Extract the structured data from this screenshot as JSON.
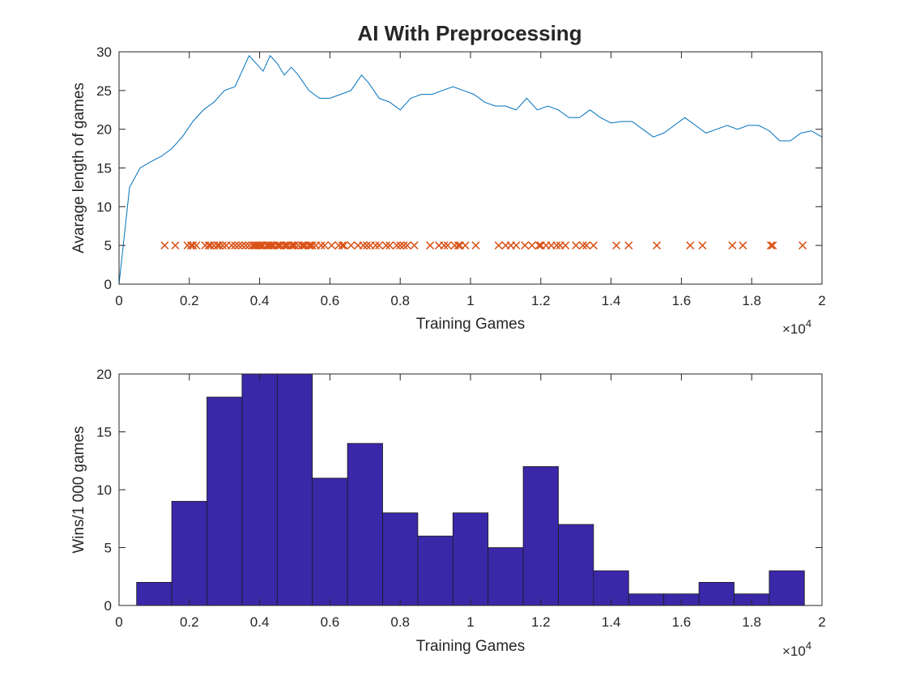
{
  "figure": {
    "title": "AI With Preprocessing"
  },
  "chart_data": [
    {
      "type": "line",
      "xlabel": "Training Games",
      "ylabel": "Avarage length of games",
      "xlim": [
        0,
        20000
      ],
      "ylim": [
        0,
        30
      ],
      "x_tick_labels": [
        "0",
        "0.2",
        "0.4",
        "0.6",
        "0.8",
        "1",
        "1.2",
        "1.4",
        "1.6",
        "1.8",
        "2"
      ],
      "x_ticks": [
        0,
        2000,
        4000,
        6000,
        8000,
        10000,
        12000,
        14000,
        16000,
        18000,
        20000
      ],
      "y_ticks": [
        0,
        5,
        10,
        15,
        20,
        25,
        30
      ],
      "x_exponent_label": "×10",
      "x_exponent_power": "4",
      "line_color": "#0072bd",
      "marker_color": "#d95319",
      "series": [
        {
          "x": [
            0,
            300,
            600,
            900,
            1200,
            1500,
            1800,
            2100,
            2400,
            2700,
            3000,
            3300,
            3500,
            3700,
            3900,
            4100,
            4300,
            4500,
            4700,
            4900,
            5100,
            5400,
            5700,
            6000,
            6300,
            6600,
            6900,
            7100,
            7400,
            7700,
            8000,
            8300,
            8600,
            8900,
            9200,
            9500,
            9800,
            10100,
            10400,
            10700,
            11000,
            11300,
            11600,
            11900,
            12200,
            12500,
            12800,
            13100,
            13400,
            13700,
            14000,
            14300,
            14600,
            14900,
            15200,
            15500,
            15800,
            16100,
            16400,
            16700,
            17000,
            17300,
            17600,
            17900,
            18200,
            18500,
            18800,
            19100,
            19400,
            19700,
            20000
          ],
          "y": [
            0,
            12.5,
            15,
            15.8,
            16.5,
            17.5,
            19,
            21,
            22.5,
            23.5,
            25,
            25.5,
            27.5,
            29.5,
            28.5,
            27.5,
            29.5,
            28.5,
            27,
            28,
            27,
            25,
            24,
            24,
            24.5,
            25,
            27,
            26,
            24,
            23.5,
            22.5,
            24,
            24.5,
            24.5,
            25,
            25.5,
            25,
            24.5,
            23.5,
            23,
            23,
            22.5,
            24,
            22.5,
            23,
            22.5,
            21.5,
            21.5,
            22.5,
            21.5,
            20.8,
            21,
            21,
            20,
            19,
            19.5,
            20.5,
            21.5,
            20.5,
            19.5,
            20,
            20.5,
            20,
            20.5,
            20.5,
            19.8,
            18.5,
            18.5,
            19.5,
            19.8,
            19
          ]
        },
        {
          "marker": "x",
          "x": [
            1300,
            1600,
            1950,
            2050,
            2100,
            2200,
            2450,
            2550,
            2600,
            2700,
            2800,
            2850,
            2950,
            3050,
            3200,
            3300,
            3400,
            3500,
            3600,
            3700,
            3800,
            3850,
            3900,
            3950,
            4000,
            4050,
            4100,
            4200,
            4250,
            4300,
            4350,
            4400,
            4500,
            4550,
            4600,
            4700,
            4750,
            4800,
            4900,
            4950,
            5000,
            5100,
            5200,
            5250,
            5300,
            5400,
            5450,
            5500,
            5600,
            5750,
            5850,
            6050,
            6250,
            6350,
            6400,
            6600,
            6800,
            6950,
            7050,
            7150,
            7300,
            7400,
            7600,
            7700,
            7900,
            8000,
            8100,
            8200,
            8400,
            8850,
            9100,
            9250,
            9350,
            9550,
            9650,
            9700,
            9850,
            10150,
            10800,
            11000,
            11150,
            11300,
            11550,
            11750,
            11950,
            12000,
            12150,
            12300,
            12450,
            12550,
            12700,
            13000,
            13200,
            13300,
            13500,
            14150,
            14500,
            15300,
            16250,
            16600,
            17450,
            17750,
            18550,
            18600,
            19450
          ],
          "y": [
            5,
            5,
            5,
            5,
            5,
            5,
            5,
            5,
            5,
            5,
            5,
            5,
            5,
            5,
            5,
            5,
            5,
            5,
            5,
            5,
            5,
            5,
            5,
            5,
            5,
            5,
            5,
            5,
            5,
            5,
            5,
            5,
            5,
            5,
            5,
            5,
            5,
            5,
            5,
            5,
            5,
            5,
            5,
            5,
            5,
            5,
            5,
            5,
            5,
            5,
            5,
            5,
            5,
            5,
            5,
            5,
            5,
            5,
            5,
            5,
            5,
            5,
            5,
            5,
            5,
            5,
            5,
            5,
            5,
            5,
            5,
            5,
            5,
            5,
            5,
            5,
            5,
            5,
            5,
            5,
            5,
            5,
            5,
            5,
            5,
            5,
            5,
            5,
            5,
            5,
            5,
            5,
            5,
            5,
            5,
            5,
            5,
            5,
            5,
            5,
            5,
            5,
            5,
            5,
            5
          ]
        }
      ]
    },
    {
      "type": "bar",
      "xlabel": "Training Games",
      "ylabel": "Wins/1 000 games",
      "xlim": [
        0,
        20000
      ],
      "ylim": [
        0,
        20
      ],
      "x_tick_labels": [
        "0",
        "0.2",
        "0.4",
        "0.6",
        "0.8",
        "1",
        "1.2",
        "1.4",
        "1.6",
        "1.8",
        "2"
      ],
      "x_ticks": [
        0,
        2000,
        4000,
        6000,
        8000,
        10000,
        12000,
        14000,
        16000,
        18000,
        20000
      ],
      "y_ticks": [
        0,
        5,
        10,
        15,
        20
      ],
      "x_exponent_label": "×10",
      "x_exponent_power": "4",
      "bar_color": "#3a28a8",
      "bin_edges": [
        500,
        1500,
        2500,
        3500,
        4500,
        5500,
        6500,
        7500,
        8500,
        9500,
        10500,
        11500,
        12500,
        13500,
        14500,
        15500,
        16500,
        17500,
        18500,
        19500
      ],
      "values": [
        2,
        9,
        18,
        20,
        20,
        11,
        14,
        8,
        6,
        8,
        5,
        12,
        7,
        3,
        1,
        1,
        2,
        1,
        3
      ]
    }
  ]
}
